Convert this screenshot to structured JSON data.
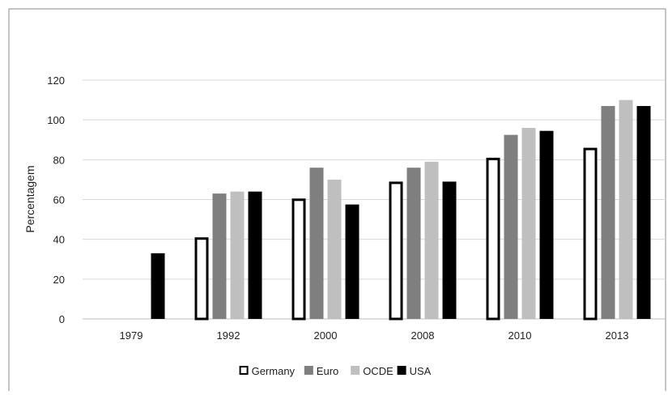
{
  "chart_data": {
    "type": "bar",
    "title": "",
    "xlabel": "",
    "ylabel": "Percentagem",
    "ylim": [
      0,
      120
    ],
    "yticks": [
      0,
      20,
      40,
      60,
      80,
      100,
      120
    ],
    "grid": true,
    "legend": "bottom",
    "categories": [
      "1979",
      "1992",
      "2000",
      "2008",
      "2010",
      "2013"
    ],
    "series": [
      {
        "name": "Germany",
        "style": "outline",
        "color": "#000000",
        "values": [
          null,
          41,
          60.5,
          69,
          81,
          86
        ]
      },
      {
        "name": "Euro",
        "style": "solid",
        "color": "#7f7f7f",
        "values": [
          null,
          63,
          76,
          76,
          92.5,
          107
        ]
      },
      {
        "name": "OCDE",
        "style": "solid",
        "color": "#bfbfbf",
        "values": [
          null,
          64,
          70,
          79,
          96,
          110
        ]
      },
      {
        "name": "USA",
        "style": "solid",
        "color": "#000000",
        "values": [
          33,
          64,
          57.5,
          69,
          94.5,
          107
        ]
      }
    ]
  }
}
